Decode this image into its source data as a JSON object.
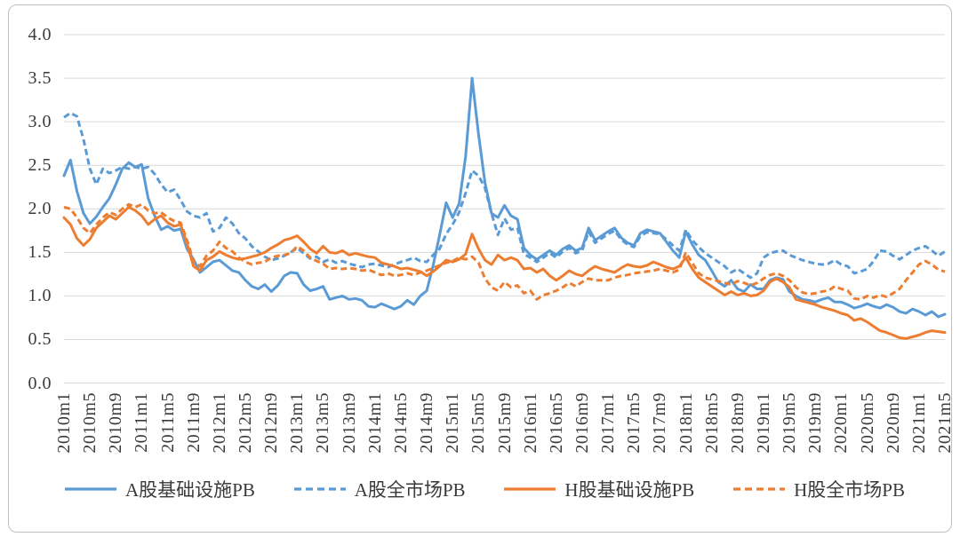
{
  "chart_data": {
    "type": "line",
    "title": "",
    "xlabel": "",
    "ylabel": "",
    "ylim": [
      0,
      4
    ],
    "grid": true,
    "legend_position": "bottom",
    "x_tick_every": 4,
    "x_tick_labels": [
      "2010m1",
      "2010m5",
      "2010m9",
      "2011m1",
      "2011m5",
      "2011m9",
      "2012m1",
      "2012m5",
      "2012m9",
      "2013m1",
      "2013m5",
      "2013m9",
      "2014m1",
      "2014m5",
      "2014m9",
      "2015m1",
      "2015m5",
      "2015m9",
      "2016m1",
      "2016m5",
      "2016m9",
      "2017m1",
      "2017m5",
      "2017m9",
      "2018m1",
      "2018m5",
      "2018m9",
      "2019m1",
      "2019m5",
      "2019m9",
      "2020m1",
      "2020m5",
      "2020m9",
      "2021m1",
      "2021m5"
    ],
    "y_tick_labels": [
      "4.0",
      "3.5",
      "3.0",
      "2.5",
      "2.0",
      "1.5",
      "1.0",
      "0.5",
      "0.0"
    ],
    "colors": {
      "a_share_blue": "#5B9BD5",
      "h_share_orange": "#ED7D31",
      "grid": "#D9D9D9",
      "axis_text": "#3A3A3A",
      "frame_border": "#BFBFBF"
    },
    "series": [
      {
        "name": "A股基础设施PB",
        "color": "#5B9BD5",
        "dash": "solid",
        "values": [
          2.38,
          2.56,
          2.2,
          1.95,
          1.83,
          1.91,
          2.02,
          2.12,
          2.28,
          2.46,
          2.53,
          2.48,
          2.51,
          2.12,
          1.92,
          1.76,
          1.8,
          1.75,
          1.77,
          1.54,
          1.42,
          1.27,
          1.33,
          1.39,
          1.41,
          1.35,
          1.29,
          1.27,
          1.18,
          1.11,
          1.08,
          1.13,
          1.05,
          1.12,
          1.23,
          1.27,
          1.26,
          1.13,
          1.06,
          1.08,
          1.11,
          0.96,
          0.98,
          1.0,
          0.96,
          0.97,
          0.95,
          0.88,
          0.87,
          0.91,
          0.88,
          0.85,
          0.88,
          0.95,
          0.9,
          1.0,
          1.06,
          1.35,
          1.7,
          2.07,
          1.9,
          2.06,
          2.6,
          3.5,
          2.85,
          2.3,
          1.95,
          1.9,
          2.04,
          1.92,
          1.88,
          1.55,
          1.47,
          1.42,
          1.47,
          1.52,
          1.47,
          1.54,
          1.58,
          1.52,
          1.55,
          1.78,
          1.64,
          1.69,
          1.74,
          1.78,
          1.67,
          1.61,
          1.58,
          1.72,
          1.76,
          1.74,
          1.72,
          1.62,
          1.52,
          1.44,
          1.74,
          1.59,
          1.47,
          1.41,
          1.29,
          1.16,
          1.11,
          1.18,
          1.08,
          1.05,
          1.13,
          1.08,
          1.08,
          1.18,
          1.21,
          1.19,
          1.05,
          1.0,
          0.96,
          0.95,
          0.93,
          0.96,
          0.98,
          0.93,
          0.93,
          0.9,
          0.86,
          0.88,
          0.91,
          0.88,
          0.86,
          0.9,
          0.87,
          0.82,
          0.8,
          0.85,
          0.82,
          0.78,
          0.82,
          0.76,
          0.79
        ]
      },
      {
        "name": "A股全市场PB",
        "color": "#5B9BD5",
        "dash": "dashed",
        "values": [
          3.05,
          3.1,
          3.06,
          2.8,
          2.46,
          2.28,
          2.46,
          2.41,
          2.44,
          2.48,
          2.46,
          2.48,
          2.46,
          2.48,
          2.4,
          2.28,
          2.19,
          2.22,
          2.1,
          1.97,
          1.92,
          1.9,
          1.95,
          1.74,
          1.78,
          1.9,
          1.83,
          1.72,
          1.66,
          1.57,
          1.51,
          1.45,
          1.41,
          1.43,
          1.46,
          1.5,
          1.55,
          1.49,
          1.43,
          1.45,
          1.39,
          1.42,
          1.38,
          1.4,
          1.37,
          1.35,
          1.33,
          1.36,
          1.37,
          1.35,
          1.33,
          1.36,
          1.39,
          1.41,
          1.44,
          1.4,
          1.39,
          1.47,
          1.54,
          1.71,
          1.82,
          1.96,
          2.18,
          2.44,
          2.38,
          2.24,
          1.95,
          1.7,
          1.89,
          1.76,
          1.78,
          1.48,
          1.44,
          1.39,
          1.44,
          1.49,
          1.44,
          1.51,
          1.55,
          1.49,
          1.52,
          1.74,
          1.61,
          1.66,
          1.71,
          1.75,
          1.65,
          1.59,
          1.56,
          1.69,
          1.73,
          1.72,
          1.71,
          1.65,
          1.58,
          1.52,
          1.76,
          1.64,
          1.56,
          1.49,
          1.44,
          1.39,
          1.34,
          1.27,
          1.31,
          1.26,
          1.21,
          1.26,
          1.44,
          1.49,
          1.51,
          1.52,
          1.47,
          1.44,
          1.41,
          1.39,
          1.37,
          1.36,
          1.37,
          1.41,
          1.36,
          1.34,
          1.26,
          1.28,
          1.31,
          1.4,
          1.52,
          1.51,
          1.46,
          1.42,
          1.47,
          1.52,
          1.55,
          1.57,
          1.52,
          1.46,
          1.51
        ]
      },
      {
        "name": "H股基础设施PB",
        "color": "#ED7D31",
        "dash": "solid",
        "values": [
          1.9,
          1.82,
          1.66,
          1.58,
          1.65,
          1.78,
          1.85,
          1.92,
          1.88,
          1.95,
          2.02,
          1.98,
          1.92,
          1.82,
          1.88,
          1.92,
          1.84,
          1.8,
          1.82,
          1.6,
          1.34,
          1.29,
          1.41,
          1.45,
          1.51,
          1.47,
          1.44,
          1.42,
          1.43,
          1.45,
          1.47,
          1.5,
          1.55,
          1.59,
          1.64,
          1.66,
          1.69,
          1.62,
          1.54,
          1.49,
          1.57,
          1.5,
          1.49,
          1.52,
          1.47,
          1.49,
          1.47,
          1.45,
          1.44,
          1.38,
          1.36,
          1.34,
          1.31,
          1.32,
          1.3,
          1.28,
          1.23,
          1.28,
          1.34,
          1.41,
          1.39,
          1.42,
          1.48,
          1.71,
          1.54,
          1.41,
          1.36,
          1.47,
          1.41,
          1.44,
          1.41,
          1.31,
          1.32,
          1.27,
          1.31,
          1.23,
          1.18,
          1.23,
          1.29,
          1.25,
          1.23,
          1.29,
          1.34,
          1.31,
          1.29,
          1.27,
          1.32,
          1.36,
          1.34,
          1.33,
          1.35,
          1.39,
          1.36,
          1.33,
          1.31,
          1.34,
          1.44,
          1.31,
          1.21,
          1.16,
          1.11,
          1.06,
          1.01,
          1.05,
          1.01,
          1.03,
          1.0,
          1.01,
          1.06,
          1.16,
          1.2,
          1.16,
          1.1,
          0.96,
          0.94,
          0.92,
          0.9,
          0.87,
          0.85,
          0.83,
          0.8,
          0.78,
          0.72,
          0.74,
          0.7,
          0.65,
          0.6,
          0.58,
          0.55,
          0.52,
          0.51,
          0.53,
          0.55,
          0.58,
          0.6,
          0.59,
          0.58
        ]
      },
      {
        "name": "H股全市场PB",
        "color": "#ED7D31",
        "dash": "dashed",
        "values": [
          2.02,
          2.0,
          1.9,
          1.78,
          1.72,
          1.82,
          1.9,
          1.96,
          1.93,
          2.0,
          2.05,
          2.02,
          2.05,
          1.98,
          1.95,
          1.96,
          1.9,
          1.86,
          1.84,
          1.64,
          1.4,
          1.34,
          1.46,
          1.52,
          1.62,
          1.55,
          1.51,
          1.44,
          1.39,
          1.36,
          1.38,
          1.39,
          1.44,
          1.46,
          1.47,
          1.49,
          1.57,
          1.52,
          1.44,
          1.4,
          1.37,
          1.31,
          1.32,
          1.31,
          1.32,
          1.31,
          1.29,
          1.3,
          1.27,
          1.24,
          1.26,
          1.23,
          1.24,
          1.26,
          1.24,
          1.27,
          1.29,
          1.32,
          1.35,
          1.38,
          1.4,
          1.44,
          1.42,
          1.45,
          1.38,
          1.2,
          1.1,
          1.06,
          1.16,
          1.1,
          1.12,
          1.03,
          1.06,
          0.96,
          1.01,
          1.03,
          1.06,
          1.1,
          1.15,
          1.11,
          1.16,
          1.2,
          1.18,
          1.18,
          1.18,
          1.21,
          1.23,
          1.24,
          1.26,
          1.27,
          1.28,
          1.29,
          1.31,
          1.29,
          1.27,
          1.3,
          1.5,
          1.38,
          1.26,
          1.21,
          1.19,
          1.17,
          1.15,
          1.13,
          1.17,
          1.15,
          1.12,
          1.15,
          1.2,
          1.24,
          1.26,
          1.23,
          1.18,
          1.1,
          1.04,
          1.02,
          1.03,
          1.05,
          1.06,
          1.11,
          1.08,
          1.06,
          0.97,
          0.96,
          1.0,
          0.98,
          1.01,
          0.99,
          1.03,
          1.08,
          1.18,
          1.27,
          1.36,
          1.4,
          1.36,
          1.3,
          1.28
        ]
      }
    ]
  }
}
